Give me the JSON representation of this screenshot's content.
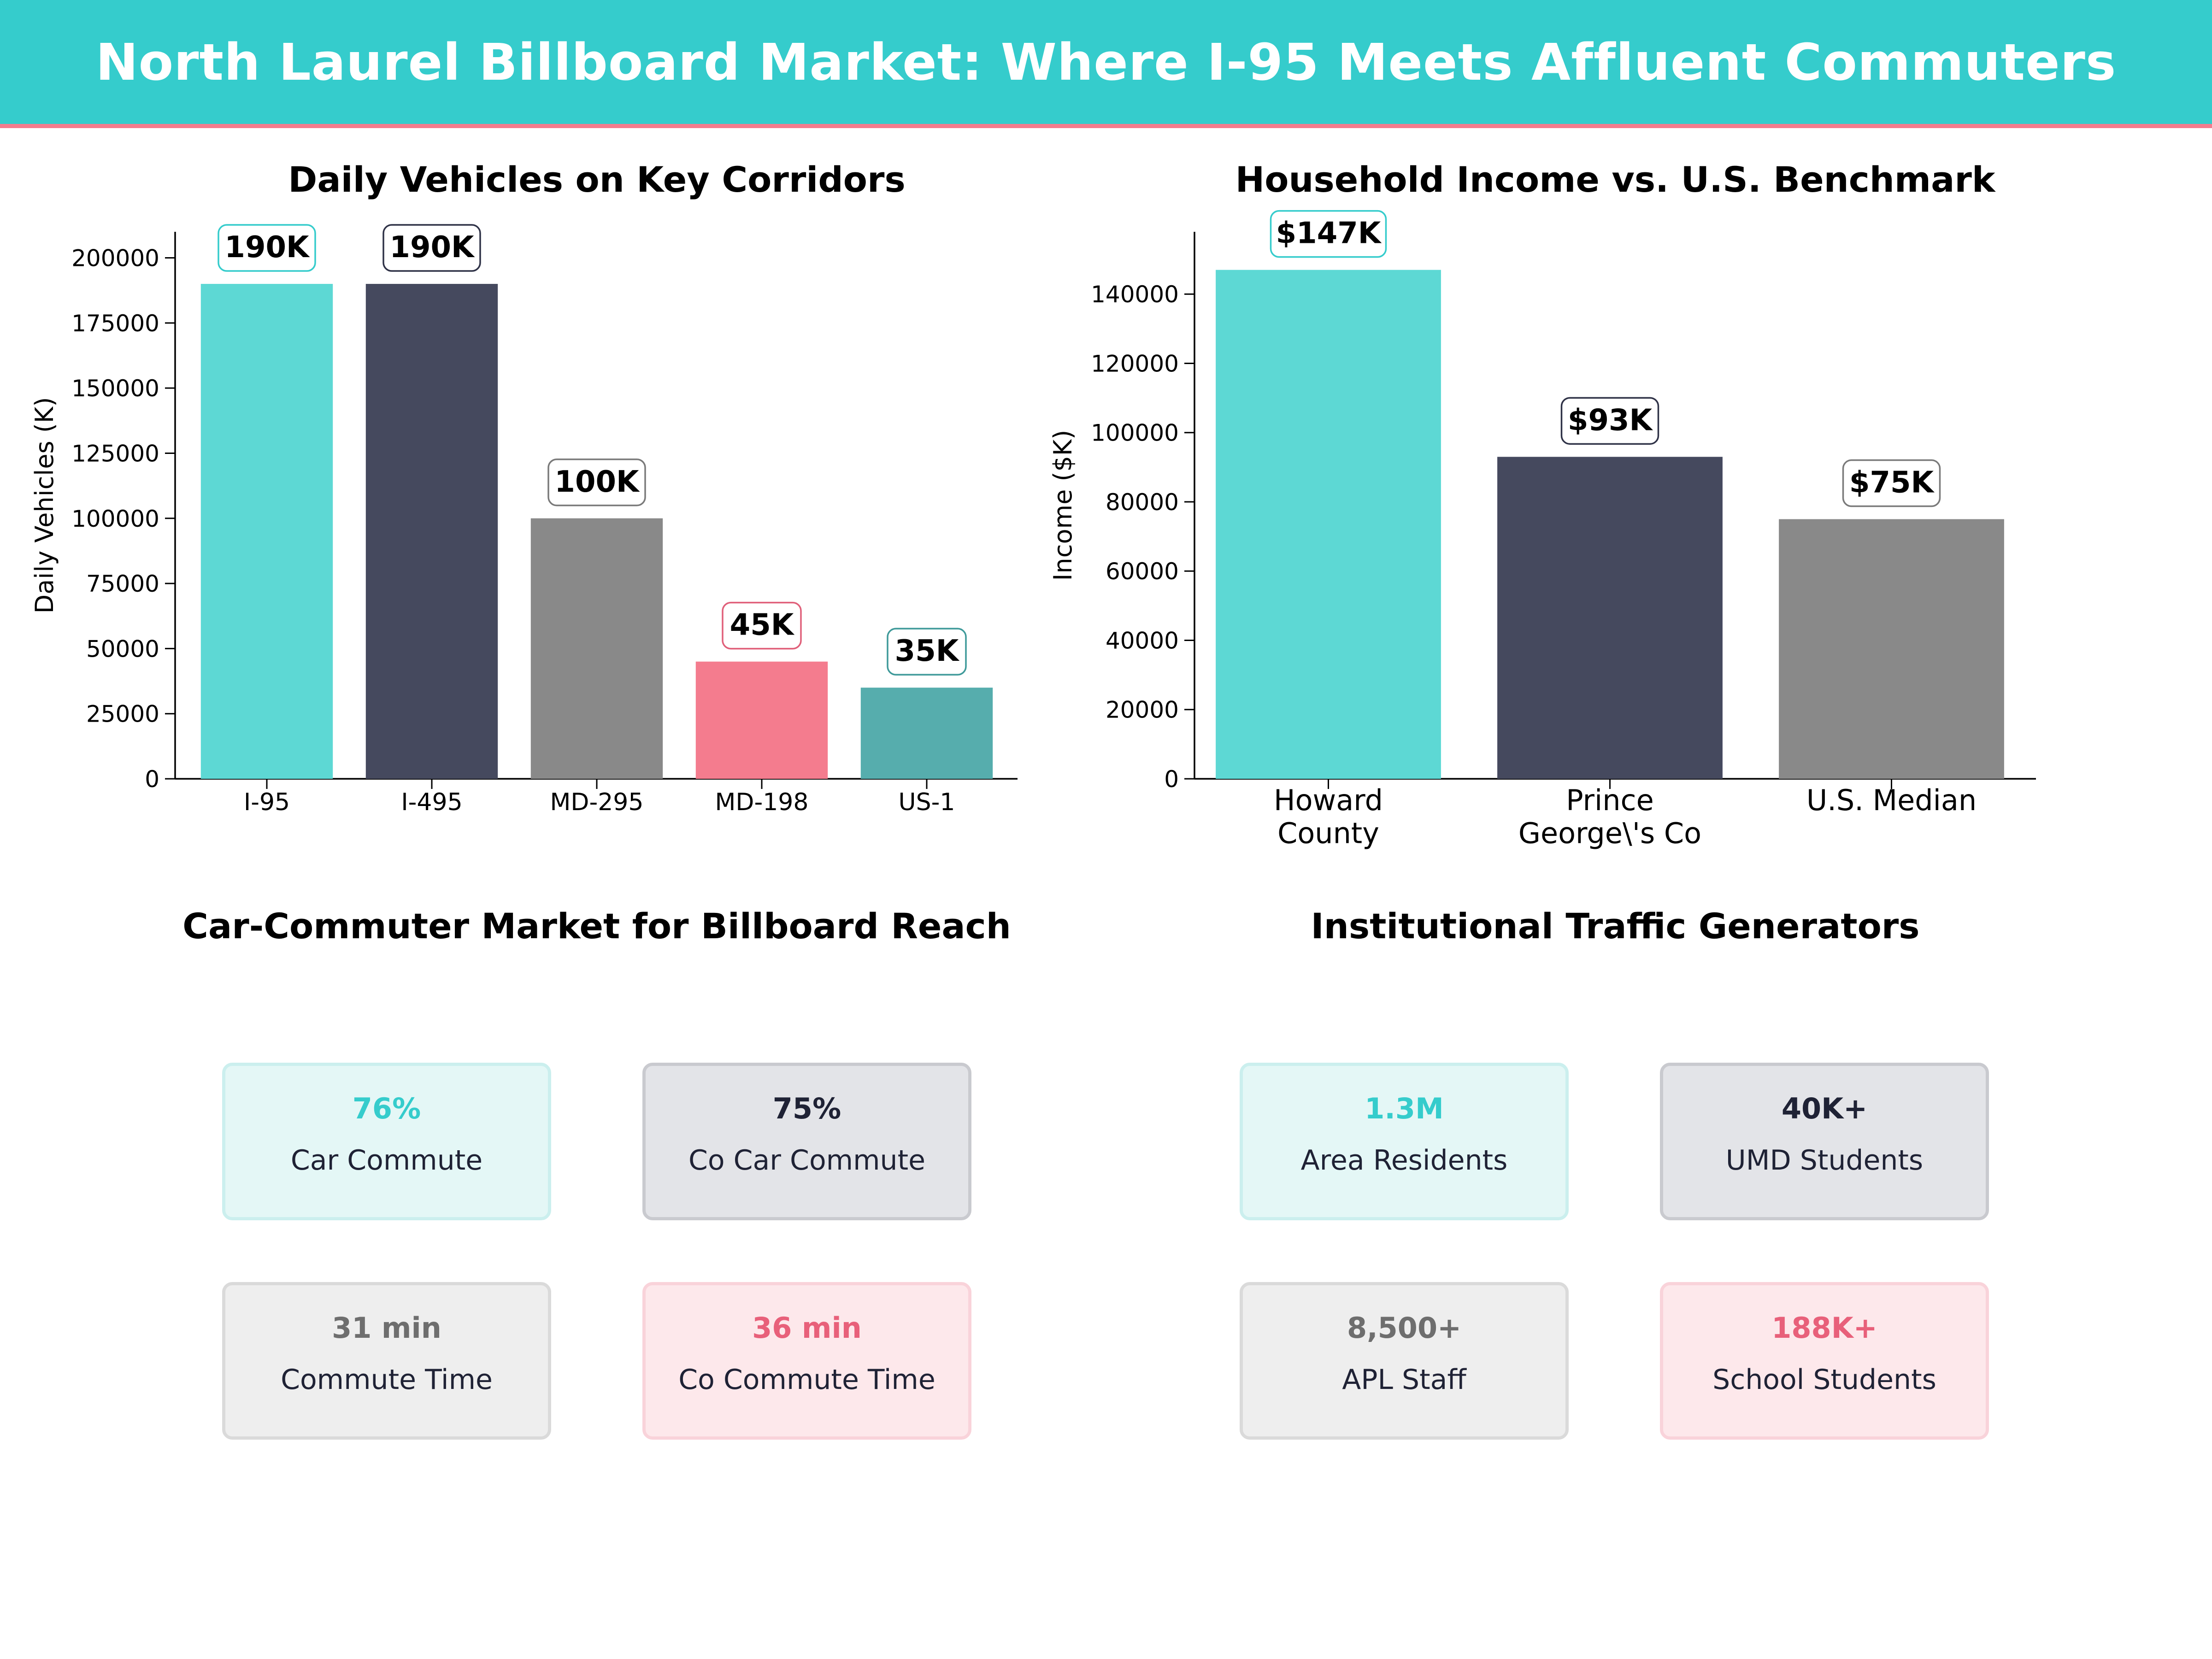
{
  "title": "North Laurel Billboard Market: Where I-95 Meets Affluent Commuters",
  "colors": {
    "banner": "#35CCCC",
    "banner_rule": "#F47C8E",
    "teal": "#5DD8D4",
    "navy": "#45495E",
    "gray": "#898989",
    "pink": "#F47C8E",
    "dark_teal": "#56ADAD"
  },
  "chart_data": [
    {
      "type": "bar",
      "title": "Daily Vehicles on Key Corridors",
      "ylabel": "Daily Vehicles (K)",
      "xlabel": "",
      "categories": [
        "I-95",
        "I-495",
        "MD-295",
        "MD-198",
        "US-1"
      ],
      "values": [
        190000,
        190000,
        100000,
        45000,
        35000
      ],
      "data_labels": [
        "190K",
        "190K",
        "100K",
        "45K",
        "35K"
      ],
      "bar_colors": [
        "#5DD8D4",
        "#45495E",
        "#898989",
        "#F47C8E",
        "#56ADAD"
      ],
      "label_border_colors": [
        "#35CCCC",
        "#2f3247",
        "#7a7a7a",
        "#E0607A",
        "#3f9a9a"
      ],
      "ylim": [
        0,
        210000
      ],
      "yticks": [
        0,
        25000,
        50000,
        75000,
        100000,
        125000,
        150000,
        175000,
        200000
      ],
      "grid": false
    },
    {
      "type": "bar",
      "title": "Household Income vs. U.S. Benchmark",
      "ylabel": "Income ($K)",
      "xlabel": "",
      "categories": [
        [
          "Howard",
          "County"
        ],
        [
          "Prince",
          "George\\'s Co"
        ],
        [
          "U.S. Median"
        ]
      ],
      "values": [
        147000,
        93000,
        75000
      ],
      "data_labels": [
        "$147K",
        "$93K",
        "$75K"
      ],
      "bar_colors": [
        "#5DD8D4",
        "#45495E",
        "#898989"
      ],
      "label_border_colors": [
        "#35CCCC",
        "#2f3247",
        "#7a7a7a"
      ],
      "ylim": [
        0,
        158000
      ],
      "yticks": [
        0,
        20000,
        40000,
        60000,
        80000,
        100000,
        120000,
        140000
      ],
      "grid": false
    }
  ],
  "commuter_panel": {
    "title": "Car-Commuter Market for Billboard Reach",
    "cards": [
      {
        "value": "76%",
        "label": "Car Commute",
        "color": "#35CCCC",
        "bg": "#E4F7F6",
        "border": "#CBEFEE"
      },
      {
        "value": "75%",
        "label": "Co Car Commute",
        "color": "#1f2235",
        "bg": "#E3E4E8",
        "border": "#C9CACF"
      },
      {
        "value": "31 min",
        "label": "Commute Time",
        "color": "#6e6e6e",
        "bg": "#EEEEEE",
        "border": "#DADADA"
      },
      {
        "value": "36 min",
        "label": "Co Commute Time",
        "color": "#E8607A",
        "bg": "#FDE8EB",
        "border": "#F9D3DA"
      }
    ]
  },
  "institutional_panel": {
    "title": "Institutional Traffic Generators",
    "cards": [
      {
        "value": "1.3M",
        "label": "Area Residents",
        "color": "#35CCCC",
        "bg": "#E4F7F6",
        "border": "#CBEFEE"
      },
      {
        "value": "40K+",
        "label": "UMD Students",
        "color": "#1f2235",
        "bg": "#E3E4E8",
        "border": "#C9CACF"
      },
      {
        "value": "8,500+",
        "label": "APL Staff",
        "color": "#6e6e6e",
        "bg": "#EEEEEE",
        "border": "#DADADA"
      },
      {
        "value": "188K+",
        "label": "School Students",
        "color": "#E8607A",
        "bg": "#FDE8EB",
        "border": "#F9D3DA"
      }
    ]
  }
}
